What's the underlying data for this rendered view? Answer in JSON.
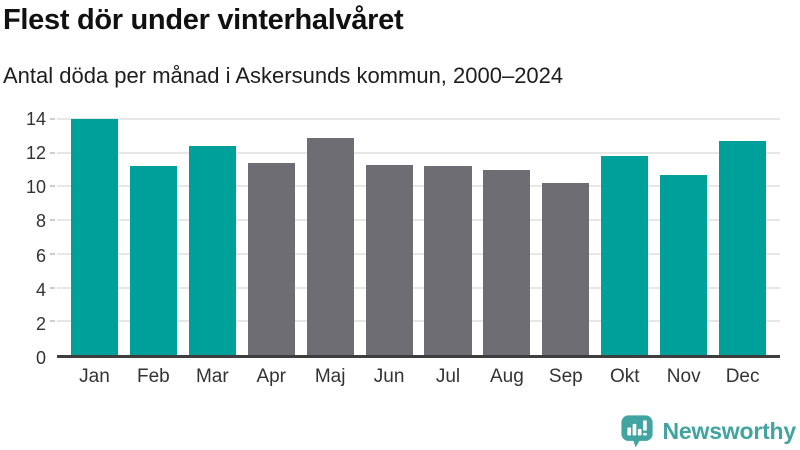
{
  "header": {
    "title": "Flest dör under vinterhalvåret",
    "subtitle": "Antal döda per månad i Askersunds kommun, 2000–2024"
  },
  "chart_data": {
    "type": "bar",
    "categories": [
      "Jan",
      "Feb",
      "Mar",
      "Apr",
      "Maj",
      "Jun",
      "Jul",
      "Aug",
      "Sep",
      "Okt",
      "Nov",
      "Dec"
    ],
    "values": [
      14.0,
      11.2,
      12.4,
      11.4,
      12.9,
      11.3,
      11.2,
      11.0,
      10.2,
      11.8,
      10.7,
      12.7
    ],
    "bar_colors": [
      "teal",
      "teal",
      "teal",
      "gray",
      "gray",
      "gray",
      "gray",
      "gray",
      "gray",
      "teal",
      "teal",
      "teal"
    ],
    "title": "Flest dör under vinterhalvåret",
    "subtitle": "Antal döda per månad i Askersunds kommun, 2000–2024",
    "xlabel": "",
    "ylabel": "",
    "ylim": [
      0,
      14
    ],
    "yticks": [
      0,
      2,
      4,
      6,
      8,
      10,
      12,
      14
    ],
    "grid": true,
    "legend": false
  },
  "colors": {
    "highlight_teal": "#00A09A",
    "muted_gray": "#6E6D73",
    "gridline": "#E7E7E7",
    "axis_line": "#3E3E3E",
    "axis_text": "#333333",
    "logo_teal": "#41A4A0"
  },
  "footer": {
    "brand": "Newsworthy",
    "logo_icon": "newsworthy-speech-bubble-chart-icon"
  }
}
